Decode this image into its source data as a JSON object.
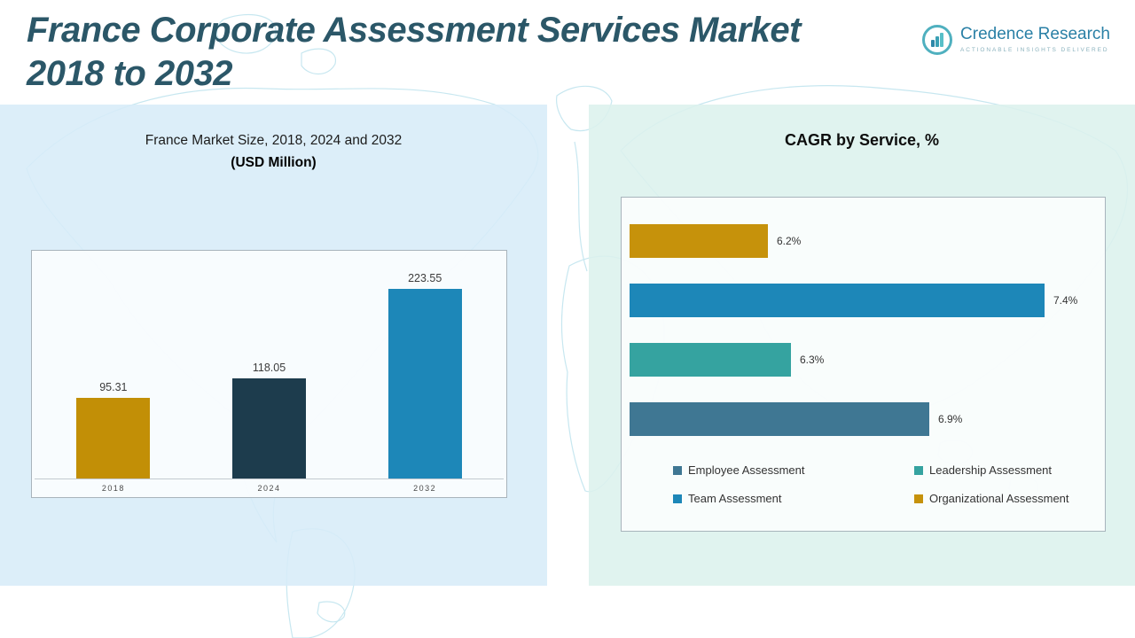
{
  "header": {
    "title_line1": "France Corporate Assessment Services Market",
    "title_line2": "2018 to 2032",
    "brand": {
      "name": "Credence Research",
      "tagline": "ACTIONABLE INSIGHTS DELIVERED",
      "accent_color": "#4fb0bf",
      "name_color": "#2a80a6"
    }
  },
  "left_panel": {
    "chart_title": "France Market Size, 2018, 2024 and 2032",
    "chart_subtitle": "(USD Million)"
  },
  "right_panel": {
    "chart_title": "CAGR by Service, %"
  },
  "chart_data": [
    {
      "type": "bar",
      "title": "France Market Size, 2018, 2024 and 2032 (USD Million)",
      "categories": [
        "2018",
        "2024",
        "2032"
      ],
      "values": [
        95.31,
        118.05,
        223.55
      ],
      "value_labels": [
        "95.31",
        "118.05",
        "223.55"
      ],
      "colors": [
        "#c28f06",
        "#1d3c4d",
        "#1d87b8"
      ],
      "xlabel": "",
      "ylabel": "USD Million",
      "ylim": [
        0,
        240
      ],
      "grid": false,
      "legend_position": "none"
    },
    {
      "type": "bar-horizontal",
      "title": "CAGR by Service, %",
      "categories": [
        "Organizational Assessment",
        "Team Assessment",
        "Leadership Assessment",
        "Employee Assessment"
      ],
      "values": [
        6.2,
        7.4,
        6.3,
        6.9
      ],
      "labels": [
        "6.2%",
        "7.4%",
        "6.3%",
        "6.9%"
      ],
      "colors": [
        "#c6920b",
        "#1d87b8",
        "#35a3a0",
        "#3f7793"
      ],
      "xlim": [
        5.6,
        7.6
      ],
      "grid": false,
      "legend_position": "bottom",
      "legend": [
        {
          "label": "Employee Assessment",
          "color": "#3f7793"
        },
        {
          "label": "Leadership Assessment",
          "color": "#35a3a0"
        },
        {
          "label": "Team Assessment",
          "color": "#1d87b8"
        },
        {
          "label": "Organizational Assessment",
          "color": "#c6920b"
        }
      ]
    }
  ]
}
